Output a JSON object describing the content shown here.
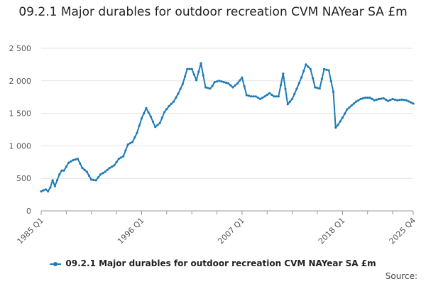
{
  "chart_data": {
    "type": "line",
    "title": "09.2.1 Major durables for outdoor recreation CVM NAYear SA £m",
    "xlabel": "",
    "ylabel": "",
    "ylim": [
      0,
      2500
    ],
    "y_ticks": [
      0,
      500,
      1000,
      1500,
      2000,
      2500
    ],
    "y_tick_labels": [
      "0",
      "500",
      "1 000",
      "1 500",
      "2 000",
      "2 500"
    ],
    "x_tick_labels": [
      "1985 Q1",
      "1996 Q1",
      "2007 Q1",
      "2018 Q1",
      "2025 Q4"
    ],
    "x_tick_positions": [
      0,
      44,
      88,
      132,
      163
    ],
    "grid": true,
    "legend_position": "bottom",
    "color": "#1f7bb6",
    "series": [
      {
        "name": "09.2.1 Major durables for outdoor recreation CVM NAYear SA £m",
        "anchors_index": [
          0,
          2,
          3,
          4,
          5,
          6,
          8,
          9,
          10,
          12,
          14,
          16,
          18,
          20,
          22,
          24,
          26,
          28,
          30,
          32,
          34,
          36,
          38,
          40,
          42,
          44,
          46,
          48,
          50,
          52,
          54,
          56,
          58,
          60,
          62,
          64,
          66,
          68,
          70,
          72,
          74,
          75,
          76,
          78,
          80,
          82,
          84,
          86,
          88,
          90,
          92,
          94,
          96,
          98,
          100,
          102,
          104,
          106,
          108,
          110,
          112,
          114,
          116,
          118,
          120,
          122,
          124,
          126,
          128,
          129,
          130,
          132,
          134,
          136,
          138,
          140,
          142,
          144,
          145,
          146,
          148,
          150,
          152,
          154,
          156,
          158,
          160,
          163
        ],
        "anchors_value": [
          300,
          330,
          300,
          360,
          470,
          380,
          560,
          620,
          620,
          740,
          780,
          800,
          660,
          600,
          480,
          470,
          560,
          600,
          660,
          700,
          800,
          840,
          1020,
          1060,
          1200,
          1420,
          1580,
          1450,
          1290,
          1350,
          1520,
          1610,
          1680,
          1800,
          1950,
          2180,
          2180,
          2010,
          2270,
          1900,
          1880,
          1920,
          1980,
          2000,
          1980,
          1960,
          1900,
          1960,
          2050,
          1780,
          1760,
          1760,
          1720,
          1760,
          1810,
          1760,
          1760,
          2110,
          1640,
          1720,
          1880,
          2050,
          2250,
          2180,
          1900,
          1880,
          2180,
          2160,
          1830,
          1280,
          1320,
          1430,
          1560,
          1620,
          1680,
          1720,
          1740,
          1740,
          1720,
          1700,
          1720,
          1730,
          1690,
          1720,
          1700,
          1710,
          1700,
          1650
        ]
      }
    ]
  },
  "legend": {
    "label": "09.2.1 Major durables for outdoor recreation CVM NAYear SA £m"
  },
  "footer": {
    "source_label": "Source:"
  }
}
